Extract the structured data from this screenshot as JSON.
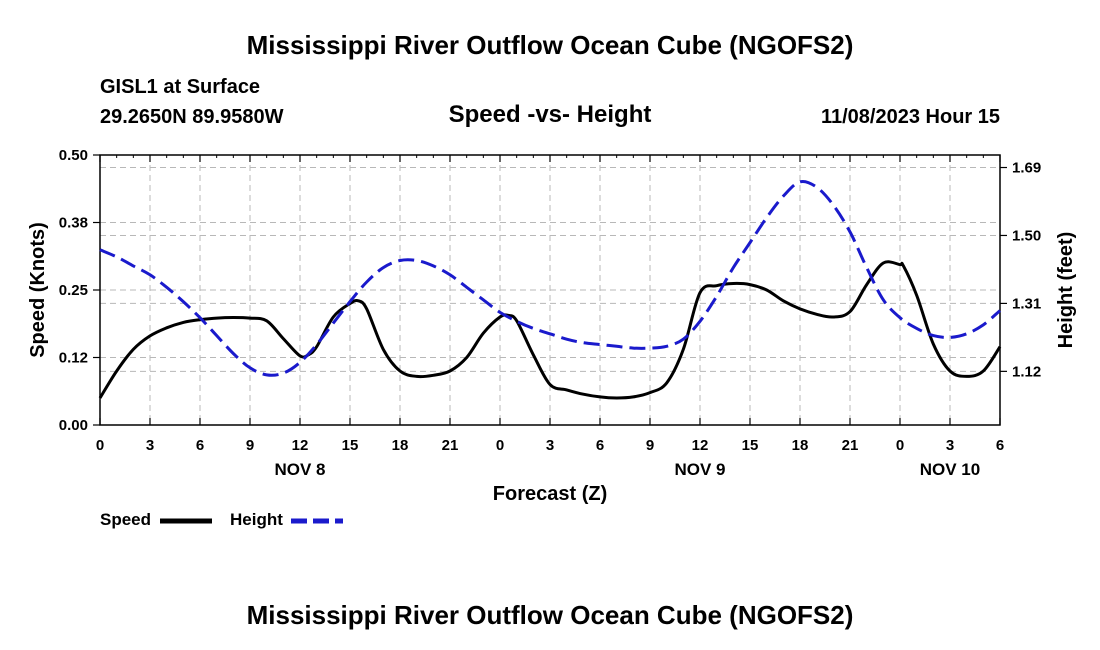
{
  "page": {
    "title_top": "Mississippi River Outflow Ocean Cube (NGOFS2)",
    "title_bottom": "Mississippi River Outflow Ocean Cube (NGOFS2)",
    "station": "GISL1 at Surface",
    "coords": "29.2650N  89.9580W",
    "date_label": "11/08/2023 Hour 15"
  },
  "chart_data": {
    "type": "line",
    "title": "Speed -vs- Height",
    "xlabel": "Forecast (Z)",
    "ylabel_left": "Speed (Knots)",
    "ylabel_right": "Height (feet)",
    "ylim_left": [
      0,
      0.5
    ],
    "ylim_right": [
      0.97,
      1.725
    ],
    "xlim": [
      0,
      54
    ],
    "x_ticks": [
      0,
      3,
      6,
      9,
      12,
      15,
      18,
      21,
      24,
      27,
      30,
      33,
      36,
      39,
      42,
      45,
      48,
      51,
      54
    ],
    "x_tick_labels": [
      "0",
      "3",
      "6",
      "9",
      "12",
      "15",
      "18",
      "21",
      "0",
      "3",
      "6",
      "9",
      "12",
      "15",
      "18",
      "21",
      "0",
      "3",
      "6"
    ],
    "day_labels": [
      {
        "x": 12,
        "label": "NOV 8"
      },
      {
        "x": 36,
        "label": "NOV 9"
      },
      {
        "x": 51,
        "label": "NOV 10"
      }
    ],
    "y_left_ticks": [
      0.0,
      0.125,
      0.25,
      0.375,
      0.5
    ],
    "y_left_tick_labels": [
      "0.00",
      "0.12",
      "0.25",
      "0.38",
      "0.50"
    ],
    "y_right_ticks": [
      1.12,
      1.31,
      1.5,
      1.69
    ],
    "y_right_tick_labels": [
      "1.12",
      "1.31",
      "1.50",
      "1.69"
    ],
    "grid": true,
    "legend_position": "bottom-left",
    "series": [
      {
        "name": "Speed",
        "axis": "left",
        "color": "#000000",
        "style": "solid",
        "x": [
          0,
          1,
          2,
          3,
          4,
          5,
          6,
          7,
          8,
          9,
          10,
          11,
          12,
          12.5,
          13,
          14,
          15,
          15.5,
          16,
          17,
          18,
          19,
          20,
          21,
          22,
          23,
          24,
          24.5,
          25,
          26,
          27,
          28,
          29,
          30,
          31,
          32,
          33,
          34,
          35,
          36,
          37,
          38,
          39,
          40,
          41,
          42,
          43,
          44,
          45,
          46,
          47,
          48,
          48.2,
          49,
          50,
          51,
          52,
          53,
          54
        ],
        "values": [
          0.05,
          0.1,
          0.14,
          0.165,
          0.18,
          0.19,
          0.195,
          0.198,
          0.199,
          0.198,
          0.193,
          0.16,
          0.128,
          0.13,
          0.145,
          0.2,
          0.225,
          0.23,
          0.215,
          0.14,
          0.1,
          0.09,
          0.092,
          0.1,
          0.125,
          0.17,
          0.2,
          0.203,
          0.193,
          0.13,
          0.075,
          0.065,
          0.057,
          0.052,
          0.05,
          0.052,
          0.06,
          0.078,
          0.14,
          0.245,
          0.258,
          0.262,
          0.26,
          0.25,
          0.23,
          0.215,
          0.205,
          0.2,
          0.21,
          0.26,
          0.3,
          0.297,
          0.295,
          0.24,
          0.15,
          0.1,
          0.09,
          0.1,
          0.145
        ]
      },
      {
        "name": "Height",
        "axis": "right",
        "color": "#1a1acc",
        "style": "dashed",
        "x": [
          0,
          1,
          2,
          3,
          4,
          5,
          6,
          7,
          8,
          9,
          10,
          11,
          12,
          13,
          14,
          15,
          16,
          17,
          18,
          19,
          20,
          21,
          22,
          23,
          24,
          25,
          26,
          27,
          28,
          29,
          30,
          31,
          32,
          33,
          34,
          35,
          36,
          37,
          38,
          39,
          40,
          41,
          42,
          43,
          44,
          45,
          46,
          47,
          48,
          49,
          50,
          51,
          52,
          53,
          54
        ],
        "values": [
          1.46,
          1.44,
          1.415,
          1.39,
          1.355,
          1.315,
          1.27,
          1.22,
          1.17,
          1.13,
          1.11,
          1.115,
          1.145,
          1.195,
          1.255,
          1.315,
          1.37,
          1.41,
          1.43,
          1.43,
          1.415,
          1.39,
          1.355,
          1.32,
          1.285,
          1.26,
          1.24,
          1.225,
          1.21,
          1.2,
          1.195,
          1.19,
          1.185,
          1.185,
          1.19,
          1.21,
          1.26,
          1.33,
          1.41,
          1.48,
          1.55,
          1.61,
          1.65,
          1.635,
          1.585,
          1.51,
          1.41,
          1.32,
          1.27,
          1.24,
          1.22,
          1.215,
          1.225,
          1.25,
          1.29
        ]
      }
    ]
  }
}
